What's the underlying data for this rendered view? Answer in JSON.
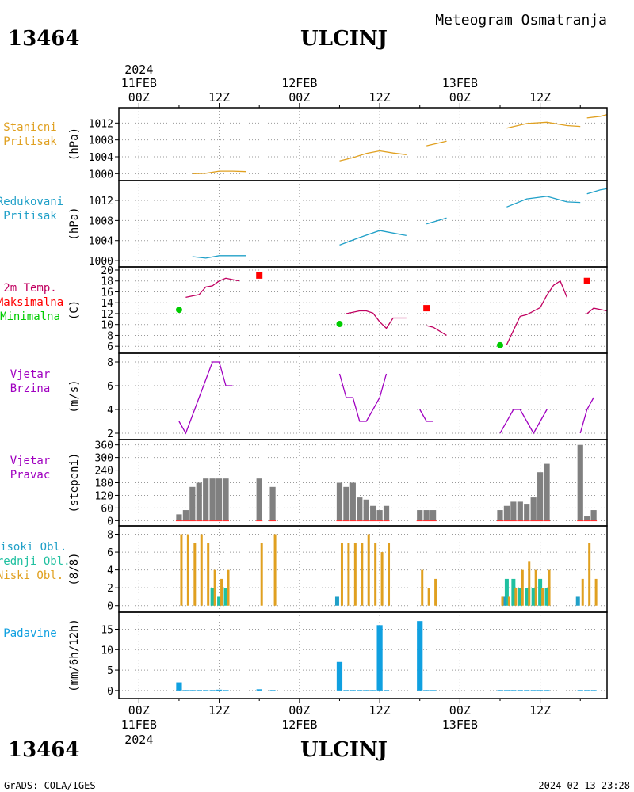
{
  "header": {
    "station_id": "13464",
    "station_name": "ULCINJ",
    "product": "Meteogram Osmatranja"
  },
  "footer": {
    "station_id": "13464",
    "station_name": "ULCINJ",
    "credit": "GrADS: COLA/IGES",
    "timestamp": "2024-02-13-23:28"
  },
  "time_axis": {
    "year": "2024",
    "day_labels": [
      "11FEB",
      "12FEB",
      "13FEB"
    ],
    "top_tick_labels": [
      "00Z",
      "12Z",
      "00Z",
      "12Z",
      "00Z",
      "12Z"
    ],
    "bottom_tick_labels": [
      "00Z",
      "12Z",
      "00Z",
      "12Z",
      "00Z",
      "12Z"
    ],
    "range_hours": [
      -3,
      70
    ]
  },
  "colors": {
    "station_pressure": "#e0a020",
    "reduced_pressure": "#20a0c8",
    "temp": "#c00060",
    "tmax": "#ff0000",
    "tmin": "#00cc00",
    "wind": "#a000c0",
    "wind_dir": "#808080",
    "cloud_high": "#20a0c8",
    "cloud_mid": "#20c0a0",
    "cloud_low": "#e0a020",
    "precip": "#10a0e0"
  },
  "chart_data": [
    {
      "type": "line",
      "name": "stanicni-pritisak",
      "labels": [
        "Stanicni",
        "Pritisak"
      ],
      "ylabel": "(hPa)",
      "ylim": [
        999.5,
        1014.5
      ],
      "ticks": [
        1000,
        1004,
        1008,
        1012
      ],
      "tick_labels": [
        "1000",
        "1004",
        "1008",
        "1012"
      ],
      "segments": [
        [
          [
            8,
            1000.0
          ],
          [
            10,
            1000.1
          ],
          [
            12,
            1000.6
          ],
          [
            14,
            1000.6
          ],
          [
            16,
            1000.5
          ]
        ],
        [
          [
            30,
            1003.0
          ],
          [
            32,
            1003.8
          ],
          [
            34,
            1004.8
          ],
          [
            36,
            1005.4
          ],
          [
            38,
            1004.9
          ],
          [
            40,
            1004.5
          ]
        ],
        [
          [
            43,
            1006.6
          ],
          [
            46,
            1007.7
          ]
        ],
        [
          [
            55,
            1010.8
          ],
          [
            58,
            1011.9
          ],
          [
            61,
            1012.2
          ],
          [
            64,
            1011.4
          ],
          [
            66,
            1011.2
          ]
        ],
        [
          [
            67,
            1013.2
          ],
          [
            69,
            1013.6
          ],
          [
            70,
            1014.0
          ]
        ]
      ]
    },
    {
      "type": "line",
      "name": "redukovani-pritisak",
      "labels": [
        "Redukovani",
        "Pritisak"
      ],
      "ylabel": "(hPa)",
      "ylim": [
        999.7,
        1015
      ],
      "ticks": [
        1000,
        1004,
        1008,
        1012
      ],
      "tick_labels": [
        "1000",
        "1004",
        "1008",
        "1012"
      ],
      "segments": [
        [
          [
            8,
            1000.8
          ],
          [
            10,
            1000.5
          ],
          [
            12,
            1001.0
          ],
          [
            16,
            1001.0
          ]
        ],
        [
          [
            30,
            1003.1
          ],
          [
            33,
            1004.6
          ],
          [
            36,
            1006.0
          ],
          [
            40,
            1005.0
          ]
        ],
        [
          [
            43,
            1007.3
          ],
          [
            46,
            1008.5
          ]
        ],
        [
          [
            55,
            1010.7
          ],
          [
            58,
            1012.3
          ],
          [
            61,
            1012.8
          ],
          [
            64,
            1011.7
          ],
          [
            66,
            1011.6
          ]
        ],
        [
          [
            67,
            1013.3
          ],
          [
            69,
            1014.1
          ],
          [
            70,
            1014.3
          ]
        ]
      ]
    },
    {
      "type": "line",
      "name": "temperatura",
      "labels": [
        "2m Temp.",
        "Maksimalna",
        "Minimalna"
      ],
      "ylabel": "(C)",
      "ylim": [
        5.3,
        20
      ],
      "ticks": [
        6,
        8,
        10,
        12,
        14,
        16,
        18,
        20
      ],
      "tick_labels": [
        "6",
        "8",
        "10",
        "12",
        "14",
        "16",
        "18",
        "20"
      ],
      "segments": [
        [
          [
            7,
            15.0
          ],
          [
            9,
            15.5
          ],
          [
            10,
            16.9
          ],
          [
            11,
            17.1
          ],
          [
            12,
            18.0
          ],
          [
            13,
            18.5
          ],
          [
            15,
            18.0
          ]
        ],
        [
          [
            31,
            12.0
          ],
          [
            33,
            12.5
          ],
          [
            34,
            12.5
          ],
          [
            35,
            12.1
          ],
          [
            36,
            10.5
          ],
          [
            37,
            9.3
          ],
          [
            38,
            11.2
          ],
          [
            40,
            11.2
          ]
        ],
        [
          [
            43,
            9.8
          ],
          [
            44,
            9.5
          ],
          [
            46,
            8.0
          ]
        ],
        [
          [
            55,
            6.3
          ],
          [
            57,
            11.5
          ],
          [
            58,
            11.8
          ],
          [
            60,
            13.1
          ],
          [
            61,
            15.4
          ],
          [
            62,
            17.2
          ],
          [
            63,
            18.0
          ],
          [
            64,
            15.0
          ]
        ],
        [
          [
            67,
            12.0
          ],
          [
            68,
            13.0
          ],
          [
            70,
            12.5
          ]
        ]
      ],
      "tmax": [
        [
          18,
          19.0
        ],
        [
          43,
          13.0
        ],
        [
          67,
          18.0
        ]
      ],
      "tmin": [
        [
          6,
          12.7
        ],
        [
          30,
          10.1
        ],
        [
          54,
          6.2
        ]
      ]
    },
    {
      "type": "line",
      "name": "vjetar-brzina",
      "labels": [
        "Vjetar",
        "Brzina"
      ],
      "ylabel": "(m/s)",
      "ylim": [
        2,
        8.2
      ],
      "ticks": [
        2,
        4,
        6,
        8
      ],
      "tick_labels": [
        "2",
        "4",
        "6",
        "8"
      ],
      "segments": [
        [
          [
            6,
            3
          ],
          [
            7,
            2
          ],
          [
            11,
            8
          ],
          [
            12,
            8
          ],
          [
            13,
            6
          ],
          [
            14,
            6
          ]
        ],
        [
          [
            30,
            7
          ],
          [
            31,
            5
          ],
          [
            32,
            5
          ],
          [
            33,
            3
          ],
          [
            34,
            3
          ],
          [
            35,
            4
          ],
          [
            36,
            5
          ],
          [
            37,
            7
          ]
        ],
        [
          [
            42,
            4
          ],
          [
            43,
            3
          ],
          [
            44,
            3
          ]
        ],
        [
          [
            54,
            2
          ],
          [
            56,
            4
          ],
          [
            57,
            4
          ],
          [
            59,
            2
          ],
          [
            61,
            4
          ]
        ],
        [
          [
            66,
            2
          ],
          [
            67,
            4
          ],
          [
            68,
            5
          ]
        ]
      ]
    },
    {
      "type": "bar",
      "name": "vjetar-pravac",
      "labels": [
        "Vjetar",
        "Pravac"
      ],
      "ylabel": "(stepeni)",
      "ylim": [
        -10,
        370
      ],
      "ticks": [
        0,
        60,
        120,
        180,
        240,
        300,
        360
      ],
      "tick_labels": [
        "0",
        "60",
        "120",
        "180",
        "240",
        "300",
        "360"
      ],
      "x": [
        6,
        7,
        8,
        9,
        10,
        11,
        12,
        13,
        18,
        20,
        30,
        31,
        32,
        33,
        34,
        35,
        36,
        37,
        42,
        43,
        44,
        54,
        55,
        56,
        57,
        58,
        59,
        60,
        61,
        66,
        67,
        68
      ],
      "values": [
        30,
        50,
        160,
        180,
        200,
        200,
        200,
        200,
        200,
        160,
        180,
        160,
        180,
        110,
        100,
        70,
        50,
        70,
        50,
        50,
        50,
        50,
        70,
        90,
        90,
        80,
        110,
        230,
        270,
        360,
        20,
        50
      ]
    },
    {
      "type": "bar",
      "name": "oblacnost",
      "labels": [
        "Visoki Obl.",
        "Srednji Obl.",
        "Niski Obl."
      ],
      "ylabel": "(8/8)",
      "ylim": [
        -0.2,
        8.4
      ],
      "ticks": [
        0,
        2,
        4,
        6,
        8
      ],
      "tick_labels": [
        "0",
        "2",
        "4",
        "6",
        "8"
      ],
      "x": [
        6,
        7,
        8,
        9,
        10,
        11,
        12,
        13,
        18,
        20,
        30,
        31,
        32,
        33,
        34,
        35,
        36,
        37,
        42,
        43,
        44,
        54,
        55,
        56,
        57,
        58,
        59,
        60,
        61,
        66,
        67,
        68
      ],
      "series": [
        {
          "name": "Visoki Obl.",
          "values": [
            0,
            0,
            0,
            0,
            0,
            0,
            0,
            0,
            0,
            0,
            1,
            0,
            0,
            0,
            0,
            0,
            0,
            0,
            0,
            0,
            0,
            0,
            1,
            0,
            0,
            0,
            0,
            0,
            0,
            1,
            0,
            0
          ]
        },
        {
          "name": "Srednji Obl.",
          "values": [
            0,
            0,
            0,
            0,
            0,
            2,
            1,
            2,
            0,
            0,
            0,
            0,
            0,
            0,
            0,
            0,
            0,
            0,
            0,
            0,
            0,
            0,
            3,
            3,
            2,
            2,
            2,
            3,
            2,
            0,
            0,
            0
          ]
        },
        {
          "name": "Niski Obl.",
          "values": [
            8,
            8,
            7,
            8,
            7,
            4,
            3,
            4,
            7,
            8,
            7,
            7,
            7,
            7,
            8,
            7,
            6,
            7,
            4,
            2,
            3,
            1,
            1,
            2,
            4,
            5,
            4,
            2,
            4,
            3,
            7,
            3
          ]
        }
      ]
    },
    {
      "type": "bar",
      "name": "padavine",
      "labels": [
        "Padavine"
      ],
      "ylabel": "(mm/6h/12h)",
      "ylim": [
        -0.8,
        18
      ],
      "ticks": [
        0,
        5,
        10,
        15
      ],
      "tick_labels": [
        "0",
        "5",
        "10",
        "15"
      ],
      "x": [
        6,
        7,
        8,
        9,
        10,
        11,
        12,
        13,
        18,
        20,
        30,
        31,
        32,
        33,
        34,
        35,
        36,
        37,
        42,
        43,
        44,
        54,
        55,
        56,
        57,
        58,
        59,
        60,
        61,
        66,
        67,
        68
      ],
      "values": [
        2.0,
        0.1,
        0.1,
        0.1,
        0.1,
        0.1,
        0.2,
        0.1,
        0.3,
        0.1,
        7.0,
        0.1,
        0.1,
        0.1,
        0.1,
        0.1,
        16.0,
        0.1,
        17.0,
        0.1,
        0.1,
        0.1,
        0.1,
        0.1,
        0.1,
        0.1,
        0.1,
        0.1,
        0.1,
        0.1,
        0.1,
        0.1
      ]
    }
  ]
}
